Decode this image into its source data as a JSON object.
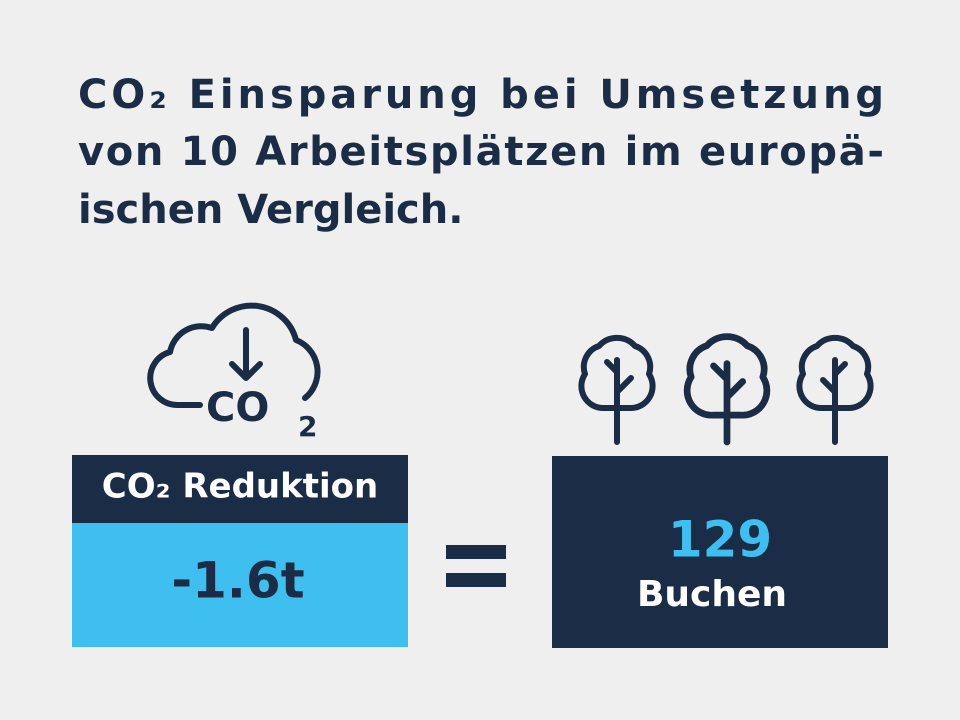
{
  "title_lines": [
    "CO₂ Einsparung bei Umsetzung",
    "von 10 Arbeitsplätzen im europä-",
    "ischen Vergleich."
  ],
  "cloud_icon": {
    "main": "CO",
    "sub": "2"
  },
  "reduction": {
    "header": "CO₂ Reduktion",
    "value": "-1.6t"
  },
  "equivalent": {
    "value": "129",
    "label": "Buchen"
  }
}
